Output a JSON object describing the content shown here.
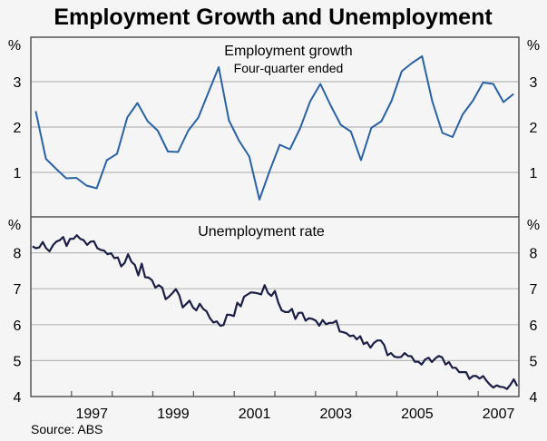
{
  "chart_data": [
    {
      "type": "line",
      "title": "Employment growth",
      "subtitle": "Four-quarter ended",
      "ylabel": "%",
      "ylim": [
        0,
        4
      ],
      "yticks": [
        1,
        2,
        3
      ],
      "grid": true,
      "series": [
        {
          "name": "Employment growth",
          "color": "#2a62a3",
          "x_start": 1996.12,
          "x_end": 2007.87,
          "values": [
            2.35,
            1.3,
            1.08,
            0.87,
            0.88,
            0.71,
            0.65,
            1.27,
            1.41,
            2.21,
            2.53,
            2.13,
            1.92,
            1.46,
            1.45,
            1.92,
            2.21,
            2.77,
            3.32,
            2.15,
            1.7,
            1.35,
            0.4,
            1.03,
            1.61,
            1.51,
            1.97,
            2.57,
            2.95,
            2.48,
            2.05,
            1.9,
            1.27,
            1.98,
            2.13,
            2.58,
            3.23,
            3.41,
            3.56,
            2.57,
            1.87,
            1.78,
            2.28,
            2.58,
            2.98,
            2.95,
            2.55,
            2.73
          ]
        }
      ]
    },
    {
      "type": "line",
      "title": "Unemployment rate",
      "ylabel": "%",
      "ylim": [
        4,
        9
      ],
      "yticks": [
        4,
        5,
        6,
        7,
        8
      ],
      "xlim": [
        1996,
        2008
      ],
      "xtick_labels": [
        "1997",
        "1999",
        "2001",
        "2003",
        "2005",
        "2007"
      ],
      "grid": true,
      "series": [
        {
          "name": "Unemployment rate",
          "color": "#1b1f45",
          "x_start": 1996.04,
          "x_end": 2007.96,
          "values": [
            8.18,
            8.13,
            8.15,
            8.3,
            8.13,
            8.04,
            8.21,
            8.31,
            8.35,
            8.44,
            8.19,
            8.39,
            8.39,
            8.49,
            8.39,
            8.35,
            8.22,
            8.31,
            8.32,
            8.13,
            8.08,
            8.06,
            7.96,
            7.99,
            7.85,
            7.87,
            7.62,
            7.72,
            7.96,
            7.75,
            7.66,
            7.37,
            7.7,
            7.32,
            7.31,
            7.24,
            7.03,
            7.1,
            7.03,
            6.71,
            6.78,
            6.88,
            6.99,
            6.82,
            6.48,
            6.57,
            6.67,
            6.48,
            6.4,
            6.58,
            6.44,
            6.37,
            6.18,
            6.06,
            6.09,
            5.97,
            5.99,
            6.28,
            6.27,
            6.24,
            6.61,
            6.51,
            6.78,
            6.84,
            6.9,
            6.89,
            6.87,
            6.84,
            7.1,
            6.88,
            6.8,
            6.94,
            6.61,
            6.4,
            6.35,
            6.35,
            6.44,
            6.16,
            6.33,
            6.33,
            6.11,
            6.18,
            6.16,
            6.11,
            5.97,
            6.13,
            6.01,
            6.05,
            6.05,
            6.11,
            5.81,
            5.79,
            5.76,
            5.68,
            5.7,
            5.59,
            5.68,
            5.46,
            5.51,
            5.36,
            5.49,
            5.56,
            5.56,
            5.44,
            5.15,
            5.21,
            5.11,
            5.09,
            5.1,
            5.21,
            5.13,
            5.12,
            4.97,
            4.97,
            4.89,
            5.03,
            5.08,
            4.96,
            5.06,
            5.13,
            5.09,
            4.89,
            4.96,
            4.8,
            4.8,
            4.68,
            4.68,
            4.68,
            4.49,
            4.57,
            4.57,
            4.5,
            4.57,
            4.44,
            4.33,
            4.25,
            4.31,
            4.27,
            4.26,
            4.21,
            4.33,
            4.48,
            4.29
          ]
        }
      ]
    }
  ],
  "header": {
    "title": "Employment Growth and Unemployment"
  },
  "footer": {
    "source": "Source: ABS"
  }
}
